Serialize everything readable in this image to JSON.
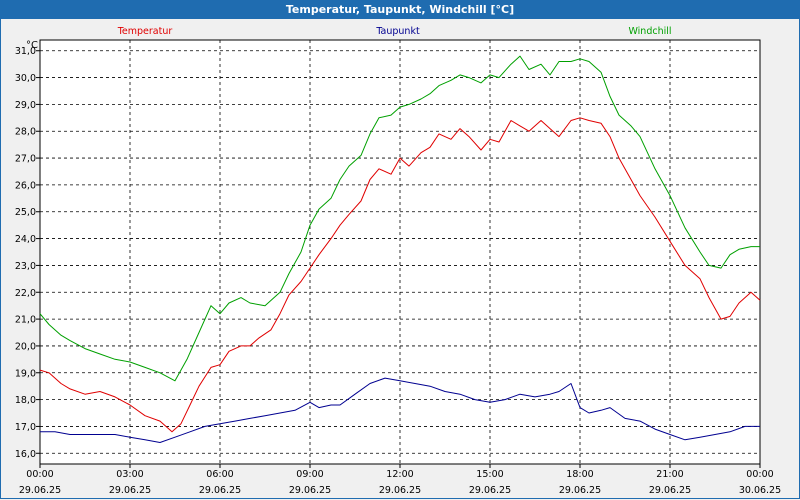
{
  "window": {
    "title": "Temperatur, Taupunkt, Windchill [°C]"
  },
  "chart_data": {
    "type": "line",
    "ylabel": "°C",
    "ylim": [
      15.6,
      31.4
    ],
    "yticks": [
      "16,0",
      "17,0",
      "18,0",
      "19,0",
      "20,0",
      "21,0",
      "22,0",
      "23,0",
      "24,0",
      "25,0",
      "26,0",
      "27,0",
      "28,0",
      "29,0",
      "30,0",
      "31,0"
    ],
    "xlim": [
      0,
      24
    ],
    "xticks": [
      {
        "time": "00:00",
        "date": "29.06.25"
      },
      {
        "time": "03:00",
        "date": "29.06.25"
      },
      {
        "time": "06:00",
        "date": "29.06.25"
      },
      {
        "time": "09:00",
        "date": "29.06.25"
      },
      {
        "time": "12:00",
        "date": "29.06.25"
      },
      {
        "time": "15:00",
        "date": "29.06.25"
      },
      {
        "time": "18:00",
        "date": "29.06.25"
      },
      {
        "time": "21:00",
        "date": "29.06.25"
      },
      {
        "time": "00:00",
        "date": "30.06.25"
      }
    ],
    "grid": true,
    "legend_position": "top",
    "series": [
      {
        "name": "Temperatur",
        "color": "#e00000",
        "x": [
          0,
          0.3,
          0.7,
          1.0,
          1.5,
          2.0,
          2.5,
          3.0,
          3.5,
          4.0,
          4.4,
          4.7,
          5.0,
          5.3,
          5.7,
          6.0,
          6.3,
          6.7,
          7.0,
          7.3,
          7.7,
          8.0,
          8.3,
          8.7,
          9.0,
          9.3,
          9.7,
          10.0,
          10.3,
          10.7,
          11.0,
          11.3,
          11.7,
          12.0,
          12.3,
          12.7,
          13.0,
          13.3,
          13.7,
          14.0,
          14.3,
          14.7,
          15.0,
          15.3,
          15.7,
          16.0,
          16.3,
          16.7,
          17.0,
          17.3,
          17.7,
          18.0,
          18.3,
          18.7,
          19.0,
          19.3,
          19.7,
          20.0,
          20.5,
          21.0,
          21.5,
          22.0,
          22.3,
          22.7,
          23.0,
          23.3,
          23.7,
          24.0
        ],
        "y": [
          19.1,
          19.0,
          18.6,
          18.4,
          18.2,
          18.3,
          18.1,
          17.8,
          17.4,
          17.2,
          16.8,
          17.1,
          17.8,
          18.5,
          19.2,
          19.3,
          19.8,
          20.0,
          20.0,
          20.3,
          20.6,
          21.2,
          21.9,
          22.4,
          22.9,
          23.4,
          24.0,
          24.5,
          24.9,
          25.4,
          26.2,
          26.6,
          26.4,
          27.0,
          26.7,
          27.2,
          27.4,
          27.9,
          27.7,
          28.1,
          27.8,
          27.3,
          27.7,
          27.6,
          28.4,
          28.2,
          28.0,
          28.4,
          28.1,
          27.8,
          28.4,
          28.5,
          28.4,
          28.3,
          27.8,
          27.0,
          26.2,
          25.6,
          24.8,
          23.9,
          23.0,
          22.5,
          21.8,
          21.0,
          21.1,
          21.6,
          22.0,
          21.7
        ]
      },
      {
        "name": "Taupunkt",
        "color": "#000090",
        "x": [
          0,
          0.5,
          1.0,
          1.5,
          2.0,
          2.5,
          3.0,
          3.5,
          4.0,
          4.5,
          5.0,
          5.5,
          6.0,
          6.5,
          7.0,
          7.5,
          8.0,
          8.5,
          9.0,
          9.3,
          9.7,
          10.0,
          10.5,
          11.0,
          11.5,
          12.0,
          12.5,
          13.0,
          13.5,
          14.0,
          14.5,
          15.0,
          15.5,
          16.0,
          16.5,
          17.0,
          17.3,
          17.7,
          18.0,
          18.3,
          18.7,
          19.0,
          19.5,
          20.0,
          20.5,
          21.0,
          21.5,
          22.0,
          22.5,
          23.0,
          23.5,
          24.0
        ],
        "y": [
          16.8,
          16.8,
          16.7,
          16.7,
          16.7,
          16.7,
          16.6,
          16.5,
          16.4,
          16.6,
          16.8,
          17.0,
          17.1,
          17.2,
          17.3,
          17.4,
          17.5,
          17.6,
          17.9,
          17.7,
          17.8,
          17.8,
          18.2,
          18.6,
          18.8,
          18.7,
          18.6,
          18.5,
          18.3,
          18.2,
          18.0,
          17.9,
          18.0,
          18.2,
          18.1,
          18.2,
          18.3,
          18.6,
          17.7,
          17.5,
          17.6,
          17.7,
          17.3,
          17.2,
          16.9,
          16.7,
          16.5,
          16.6,
          16.7,
          16.8,
          17.0,
          17.0
        ]
      },
      {
        "name": "Windchill",
        "color": "#00a000",
        "x": [
          0,
          0.3,
          0.7,
          1.0,
          1.5,
          2.0,
          2.5,
          3.0,
          3.5,
          4.0,
          4.5,
          4.9,
          5.3,
          5.7,
          6.0,
          6.3,
          6.7,
          7.0,
          7.5,
          8.0,
          8.3,
          8.7,
          9.0,
          9.3,
          9.7,
          10.0,
          10.3,
          10.7,
          11.0,
          11.3,
          11.7,
          12.0,
          12.3,
          12.7,
          13.0,
          13.3,
          13.7,
          14.0,
          14.3,
          14.7,
          15.0,
          15.3,
          15.7,
          16.0,
          16.3,
          16.7,
          17.0,
          17.3,
          17.7,
          18.0,
          18.3,
          18.7,
          19.0,
          19.3,
          19.7,
          20.0,
          20.5,
          21.0,
          21.5,
          22.0,
          22.3,
          22.7,
          23.0,
          23.3,
          23.7,
          24.0
        ],
        "y": [
          21.2,
          20.8,
          20.4,
          20.2,
          19.9,
          19.7,
          19.5,
          19.4,
          19.2,
          19.0,
          18.7,
          19.5,
          20.5,
          21.5,
          21.2,
          21.6,
          21.8,
          21.6,
          21.5,
          22.0,
          22.7,
          23.5,
          24.5,
          25.1,
          25.5,
          26.2,
          26.7,
          27.1,
          27.9,
          28.5,
          28.6,
          28.9,
          29.0,
          29.2,
          29.4,
          29.7,
          29.9,
          30.1,
          30.0,
          29.8,
          30.1,
          30.0,
          30.5,
          30.8,
          30.3,
          30.5,
          30.1,
          30.6,
          30.6,
          30.7,
          30.6,
          30.2,
          29.3,
          28.6,
          28.2,
          27.8,
          26.6,
          25.6,
          24.4,
          23.5,
          23.0,
          22.9,
          23.4,
          23.6,
          23.7,
          23.7
        ]
      }
    ]
  }
}
